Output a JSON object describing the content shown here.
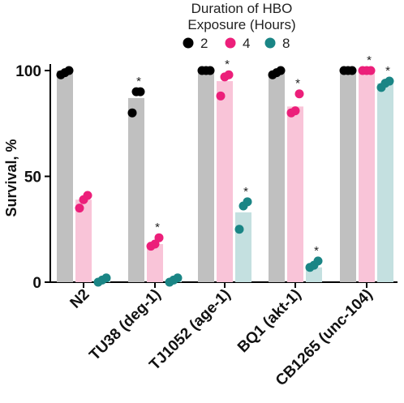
{
  "chart_data": {
    "type": "bar",
    "legend_title": "Duration of HBO Exposure (Hours)",
    "legend_title_lines": [
      "Duration of HBO",
      "Exposure (Hours)"
    ],
    "legend_placement": "top",
    "ylabel": "Survival, %",
    "ylim": [
      0,
      100
    ],
    "yticks": [
      0,
      50,
      100
    ],
    "categories": [
      "N2",
      "TU38 (deg-1)",
      "TJ1052 (age-1)",
      "BQ1 (akt-1)",
      "CB1265 (unc-104)"
    ],
    "series": [
      {
        "name": "2",
        "bar_color": "#c0c0c0",
        "dot_color": "#000000",
        "values": [
          100,
          87,
          100,
          99,
          100
        ],
        "points": [
          [
            98,
            99,
            100
          ],
          [
            80,
            90,
            90
          ],
          [
            100,
            100,
            100
          ],
          [
            98,
            99,
            100
          ],
          [
            100,
            100,
            100
          ]
        ],
        "significant": [
          false,
          true,
          false,
          false,
          false
        ]
      },
      {
        "name": "4",
        "bar_color": "#f9c4d8",
        "dot_color": "#ec1f7a",
        "values": [
          39,
          18,
          95,
          83,
          100
        ],
        "points": [
          [
            35,
            39,
            41
          ],
          [
            17,
            18,
            21
          ],
          [
            88,
            97,
            98
          ],
          [
            80,
            81,
            89
          ],
          [
            100,
            100,
            100
          ]
        ],
        "significant": [
          false,
          true,
          true,
          true,
          true
        ]
      },
      {
        "name": "8",
        "bar_color": "#c4e0e0",
        "dot_color": "#1a8585",
        "values": [
          1,
          1,
          33,
          7,
          94
        ],
        "points": [
          [
            0,
            1,
            2
          ],
          [
            0,
            1,
            2
          ],
          [
            25,
            36,
            38
          ],
          [
            7,
            8,
            10
          ],
          [
            92,
            94,
            95
          ]
        ],
        "significant": [
          false,
          false,
          true,
          true,
          true
        ]
      }
    ],
    "significance_mark": "*",
    "grid": false
  }
}
